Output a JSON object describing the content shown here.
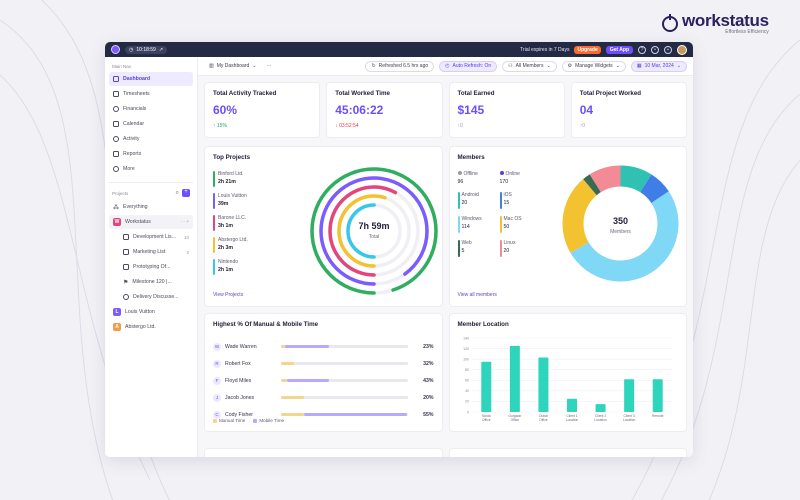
{
  "brand": {
    "name": "workstatus",
    "tagline": "Effortless Efficiency"
  },
  "topbar": {
    "timer": "10:18:59",
    "trial": "Trial expires in 7 Days",
    "upgrade": "Upgrade",
    "get_app": "Get App"
  },
  "sidebar": {
    "main_label": "Main Nav",
    "items": [
      {
        "label": "Dashboard",
        "active": true
      },
      {
        "label": "Timesheets"
      },
      {
        "label": "Financials"
      },
      {
        "label": "Calendar"
      },
      {
        "label": "Activity"
      },
      {
        "label": "Reports"
      },
      {
        "label": "More"
      }
    ],
    "projects_label": "Projects",
    "everything": "Everything",
    "workstatus": {
      "label": "Workstatus",
      "letter": "W"
    },
    "sub": [
      {
        "label": "Development Lis...",
        "count": "10"
      },
      {
        "label": "Marketing List",
        "count": "2"
      },
      {
        "label": "Prototyping Of...",
        "count": ""
      },
      {
        "label": "Milestone 120 |...",
        "count": ""
      },
      {
        "label": "Delivery Discusse...",
        "count": ""
      }
    ],
    "louis": {
      "label": "Louis Vuitton",
      "letter": "L",
      "color": "#7a5cff"
    },
    "abstergo": {
      "label": "Abstergo Ltd.",
      "letter": "A",
      "color": "#f29b4b"
    }
  },
  "subbar": {
    "dashboard": "My Dashboard",
    "refreshed": "Refreshed 6.5 hrs ago",
    "auto": "Auto Refresh: On",
    "members": "All Members",
    "widgets": "Manage Widgets",
    "date": "10 Mar, 2024"
  },
  "kpis": [
    {
      "title": "Total Activity Tracked",
      "value": "60%",
      "delta": "15%",
      "dir": "up"
    },
    {
      "title": "Total Worked Time",
      "value": "45:06:22",
      "delta": "03:52:54",
      "dir": "down"
    },
    {
      "title": "Total Earned",
      "value": "$145",
      "delta": "0",
      "dir": "neutral"
    },
    {
      "title": "Total Project Worked",
      "value": "04",
      "delta": "0",
      "dir": "neutral"
    }
  ],
  "top_projects": {
    "title": "Top Projects",
    "link": "View Projects",
    "center_value": "7h 59m",
    "center_label": "Total",
    "items": [
      {
        "name": "Binford Ltd.",
        "time": "2h 21m",
        "color": "#2fae5f",
        "fraction": 0.95
      },
      {
        "name": "Louis Vuitton",
        "time": "39m",
        "color": "#7a5cff",
        "fraction": 0.9
      },
      {
        "name": "Barone LLC.",
        "time": "3h 1m",
        "color": "#e2477c",
        "fraction": 0.58
      },
      {
        "name": "Abstergo Ltd.",
        "time": "2h 3m",
        "color": "#f2c230",
        "fraction": 0.55
      },
      {
        "name": "Nintendo",
        "time": "2h 1m",
        "color": "#38c7e8",
        "fraction": 0.5
      }
    ]
  },
  "members": {
    "title": "Members",
    "link": "View all members",
    "total": "350",
    "total_label": "Members",
    "items": [
      {
        "name": "Offline",
        "value": "96",
        "color": "#9a9aac",
        "dot": true
      },
      {
        "name": "Online",
        "value": "170",
        "color": "#5b3fe0",
        "dot": true
      },
      {
        "name": "Android",
        "value": "20",
        "color": "#2fc2b3"
      },
      {
        "name": "iOS",
        "value": "15",
        "color": "#3f7ee6"
      },
      {
        "name": "Windows",
        "value": "114",
        "color": "#7fd8f5"
      },
      {
        "name": "Mac OS",
        "value": "50",
        "color": "#f2c230"
      },
      {
        "name": "Web",
        "value": "5",
        "color": "#3a6b52"
      },
      {
        "name": "Linux",
        "value": "20",
        "color": "#f28b95"
      }
    ]
  },
  "manual_mobile": {
    "title": "Highest % Of Manual & Mobile Time",
    "legend_manual": "Manual Time",
    "legend_mobile": "Mobile Time",
    "rows": [
      {
        "initial": "W",
        "name": "Wade Warren",
        "pct": "23%",
        "manual": 0.03,
        "mobile": 0.35
      },
      {
        "initial": "R",
        "name": "Robert Fox",
        "pct": "32%",
        "manual": 0.1,
        "mobile": 0.0
      },
      {
        "initial": "F",
        "name": "Floyd Miles",
        "pct": "43%",
        "manual": 0.05,
        "mobile": 0.33
      },
      {
        "initial": "J",
        "name": "Jacob Jones",
        "pct": "20%",
        "manual": 0.18,
        "mobile": 0.0
      },
      {
        "initial": "C",
        "name": "Cody Fisher",
        "pct": "55%",
        "manual": 0.18,
        "mobile": 0.82
      }
    ]
  },
  "chart_data": {
    "type": "bar",
    "title": "Member Location",
    "categories": [
      "Noida Office",
      "Gurgaon Office",
      "Dubai Office",
      "Client 1 Location",
      "Client 2 Location",
      "Client 3 Location",
      "Remote"
    ],
    "values": [
      95,
      125,
      103,
      25,
      15,
      62,
      62
    ],
    "ylim": [
      0,
      140
    ],
    "yticks": [
      0,
      20,
      40,
      60,
      80,
      100,
      120,
      140
    ],
    "color": "#2fd4bd"
  }
}
